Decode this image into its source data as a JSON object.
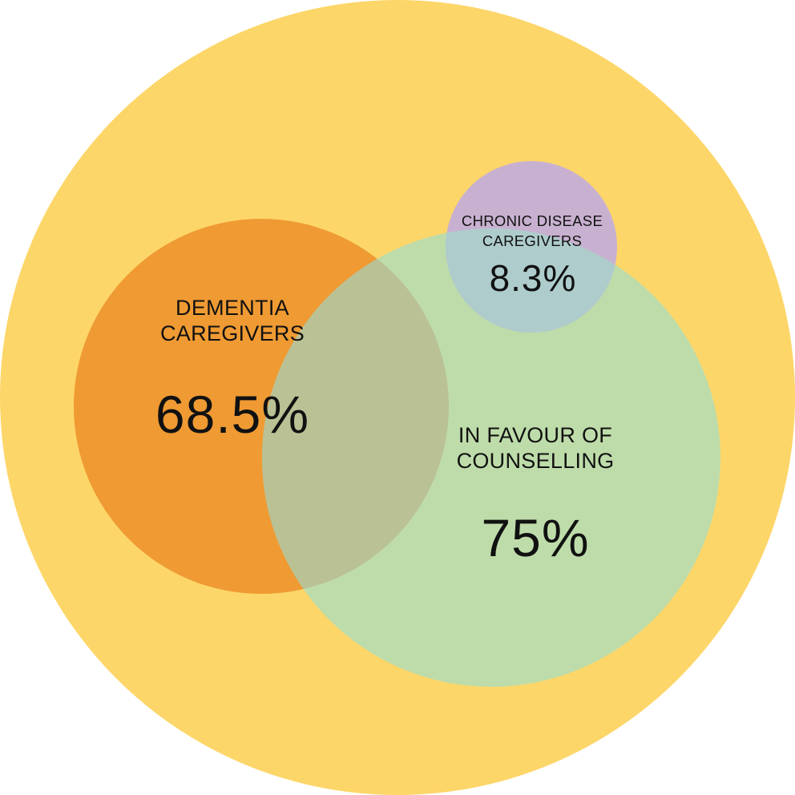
{
  "colors": {
    "outer": "#FDD669",
    "dementia": "#EF9A33",
    "counselling": "#BEDCAA",
    "counselling_overlap": "#BAC195",
    "chronic": "#C8B1D0",
    "chronic_overlap": "#AFCCCC",
    "text": "#111111"
  },
  "circles": {
    "dementia": {
      "title_line1": "DEMENTIA",
      "title_line2": "CAREGIVERS",
      "value": "68.5%"
    },
    "counselling": {
      "title_line1": "IN FAVOUR OF",
      "title_line2": "COUNSELLING",
      "value": "75%"
    },
    "chronic": {
      "title_line1": "CHRONIC DISEASE",
      "title_line2": "CAREGIVERS",
      "value": "8.3%"
    }
  }
}
